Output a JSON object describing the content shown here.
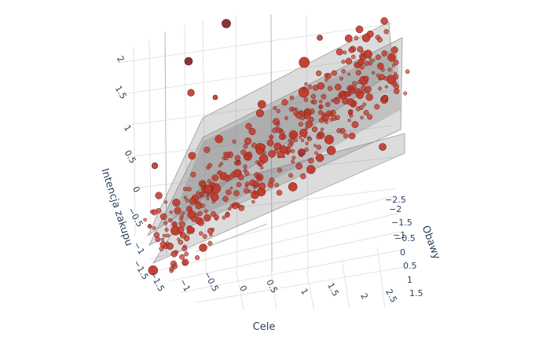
{
  "chart_data": {
    "type": "scatter3d",
    "axes": {
      "x": {
        "title": "Cele",
        "ticks": [
          "−1.5",
          "−1",
          "−0.5",
          "0",
          "0.5",
          "1",
          "1.5",
          "2",
          "2.5"
        ]
      },
      "y": {
        "title": "Obawy",
        "ticks": [
          "−2.5",
          "−2",
          "−1.5",
          "−1",
          "−0.5",
          "0",
          "0.5",
          "1",
          "1.5"
        ]
      },
      "z": {
        "title": "Intencja zakupu",
        "ticks": [
          "−1.5",
          "−1",
          "−0.5",
          "0",
          "0.5",
          "1",
          "1.5",
          "2"
        ]
      }
    },
    "colors": {
      "marker_fill": "#c0392b",
      "marker_edge": "#7a1f1a",
      "plane_fill": "#808080",
      "grid": "#dcdcdc"
    },
    "planes": [
      {
        "name": "",
        "intercept": -0.45,
        "slope_x": 0.55,
        "slope_y": 0.1
      },
      {
        "name": "",
        "intercept": 0.0,
        "slope_x": 0.55,
        "slope_y": 0.1
      },
      {
        "name": "",
        "intercept": 0.45,
        "slope_x": 0.55,
        "slope_y": 0.1
      }
    ],
    "marker_note": "marker size encodes residual distance from the fitted plane"
  }
}
